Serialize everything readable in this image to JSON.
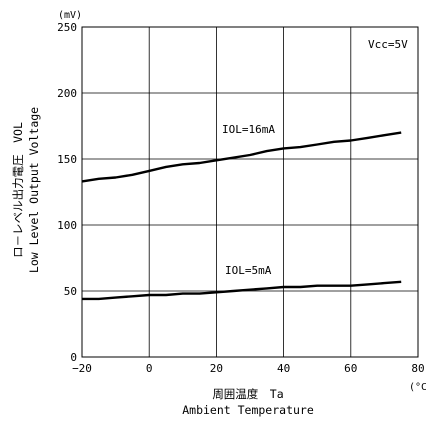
{
  "chart_data": {
    "type": "line",
    "xlabel_ja": "周囲温度　Ta",
    "xlabel_en": "Ambient Temperature",
    "ylabel_ja": "ロ－レベル出力電圧　VOL",
    "ylabel_en": "Low Level Output Voltage",
    "x_unit": "(°C",
    "y_unit": "(mV)",
    "condition": "Vcc=5V",
    "xlim": [
      -20,
      80
    ],
    "ylim": [
      0,
      250
    ],
    "x_ticks": [
      "−20",
      "0",
      "20",
      "40",
      "60",
      "80"
    ],
    "x_tick_values": [
      -20,
      0,
      20,
      40,
      60,
      80
    ],
    "y_ticks": [
      "0",
      "50",
      "100",
      "150",
      "200",
      "250"
    ],
    "y_tick_values": [
      0,
      50,
      100,
      150,
      200,
      250
    ],
    "x_minor_gridlines": [
      -10,
      10,
      30,
      50,
      70
    ],
    "grid": true,
    "series": [
      {
        "name": "IOL=16mA",
        "x": [
          -20,
          -15,
          -10,
          -5,
          0,
          5,
          10,
          15,
          20,
          25,
          30,
          35,
          40,
          45,
          50,
          55,
          60,
          65,
          70,
          75
        ],
        "y": [
          133,
          135,
          136,
          138,
          141,
          144,
          146,
          147,
          149,
          151,
          153,
          156,
          158,
          159,
          161,
          163,
          164,
          166,
          168,
          170
        ]
      },
      {
        "name": "IOL=5mA",
        "x": [
          -20,
          -15,
          -10,
          -5,
          0,
          5,
          10,
          15,
          20,
          25,
          30,
          35,
          40,
          45,
          50,
          55,
          60,
          65,
          70,
          75
        ],
        "y": [
          44,
          44,
          45,
          46,
          47,
          47,
          48,
          48,
          49,
          50,
          51,
          52,
          53,
          53,
          54,
          54,
          54,
          55,
          56,
          57
        ]
      }
    ]
  }
}
